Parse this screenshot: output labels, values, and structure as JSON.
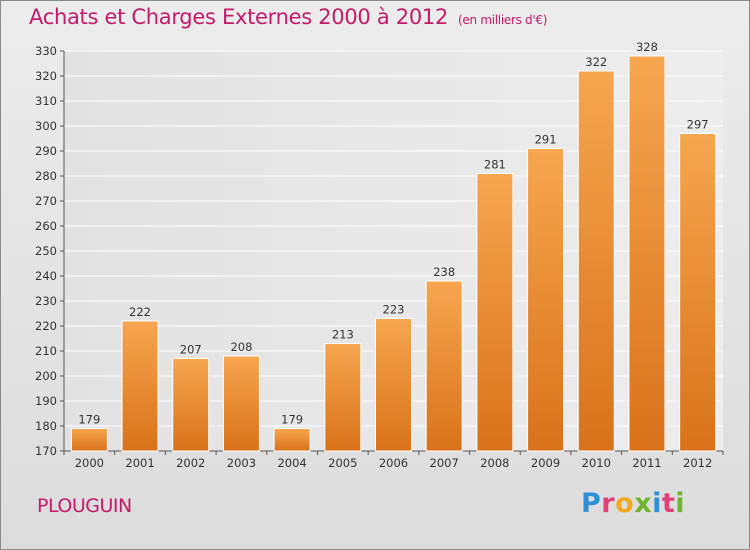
{
  "header": {
    "title": "Achats et Charges Externes 2000 à 2012",
    "unit": "(en milliers d'€)"
  },
  "place": "PLOUGUIN",
  "brand": "Proxiti",
  "colors": {
    "title": "#c31a6a",
    "bar_light": "#f6a64f",
    "bar_dark": "#d9721a"
  },
  "chart_data": {
    "type": "bar",
    "title": "Achats et Charges Externes 2000 à 2012",
    "subtitle": "(en milliers d'€)",
    "categories": [
      "2000",
      "2001",
      "2002",
      "2003",
      "2004",
      "2005",
      "2006",
      "2007",
      "2008",
      "2009",
      "2010",
      "2011",
      "2012"
    ],
    "values": [
      179,
      222,
      207,
      208,
      179,
      213,
      223,
      238,
      281,
      291,
      322,
      328,
      297
    ],
    "ylim": [
      170,
      330
    ],
    "yticks": [
      170,
      180,
      190,
      200,
      210,
      220,
      230,
      240,
      250,
      260,
      270,
      280,
      290,
      300,
      310,
      320,
      330
    ],
    "grid": true,
    "legend": "none"
  }
}
